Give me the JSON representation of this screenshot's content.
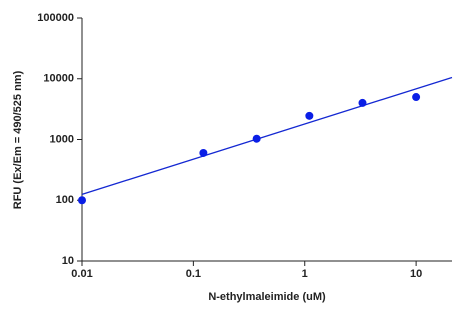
{
  "chart_data": {
    "type": "scatter",
    "x_label": "N-ethylmaleimide (uM)",
    "y_label": "RFU (Ex/Em = 490/525 nm)",
    "x_log": true,
    "y_log": true,
    "xlim": [
      0.01,
      21
    ],
    "ylim": [
      10,
      100000
    ],
    "xticks": [
      0.01,
      0.1,
      1,
      10
    ],
    "yticks": [
      10,
      100,
      1000,
      10000,
      100000
    ],
    "points": {
      "color": "#0a1ee6",
      "x": [
        0.01,
        0.123,
        0.37,
        1.1,
        3.3,
        10
      ],
      "values": [
        100,
        600,
        1030,
        2450,
        4000,
        5000
      ]
    },
    "fit": {
      "color": "#1428d2",
      "x": [
        0.01,
        21
      ],
      "values": [
        125,
        10500
      ]
    }
  }
}
